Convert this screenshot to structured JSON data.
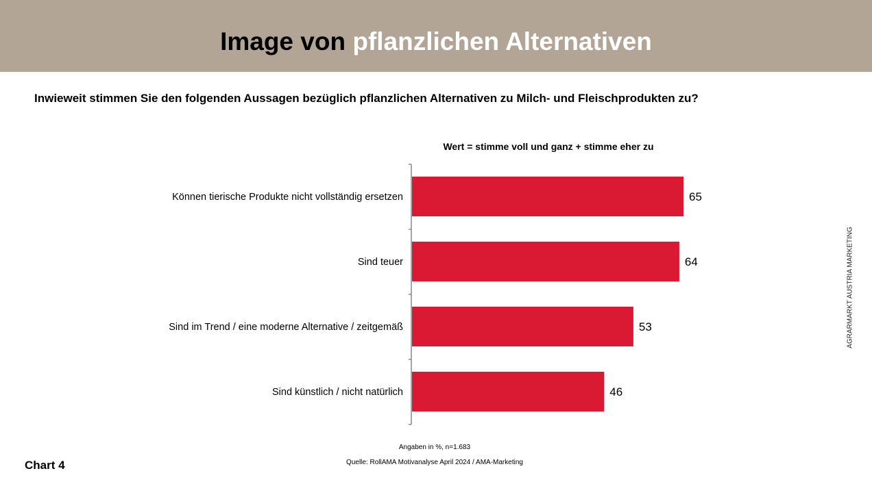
{
  "header": {
    "title_dark": "Image von",
    "title_light": "pflanzlichen Alternativen",
    "color": "#b3a595"
  },
  "question": "Inwieweit stimmen Sie den folgenden Aussagen bezüglich pflanzlichen Alternativen zu Milch- und Fleischprodukten zu?",
  "chart_data": {
    "type": "bar",
    "orientation": "horizontal",
    "title": "Wert = stimme voll und ganz + stimme eher zu",
    "categories": [
      "Können tierische Produkte nicht vollständig ersetzen",
      "Sind teuer",
      "Sind im Trend / eine moderne Alternative / zeitgemäß",
      "Sind künstlich / nicht natürlich"
    ],
    "values": [
      65,
      64,
      53,
      46
    ],
    "bar_color": "#da1a32",
    "xlim": [
      0,
      100
    ],
    "grid": false
  },
  "footer": {
    "note": "Angaben in %, n=1.683",
    "source": "Quelle: RollAMA Motivanalyse April 2024 / AMA-Marketing",
    "chart_label": "Chart 4",
    "side_text": "AGRARMARKT AUSTRIA MARKETING"
  }
}
